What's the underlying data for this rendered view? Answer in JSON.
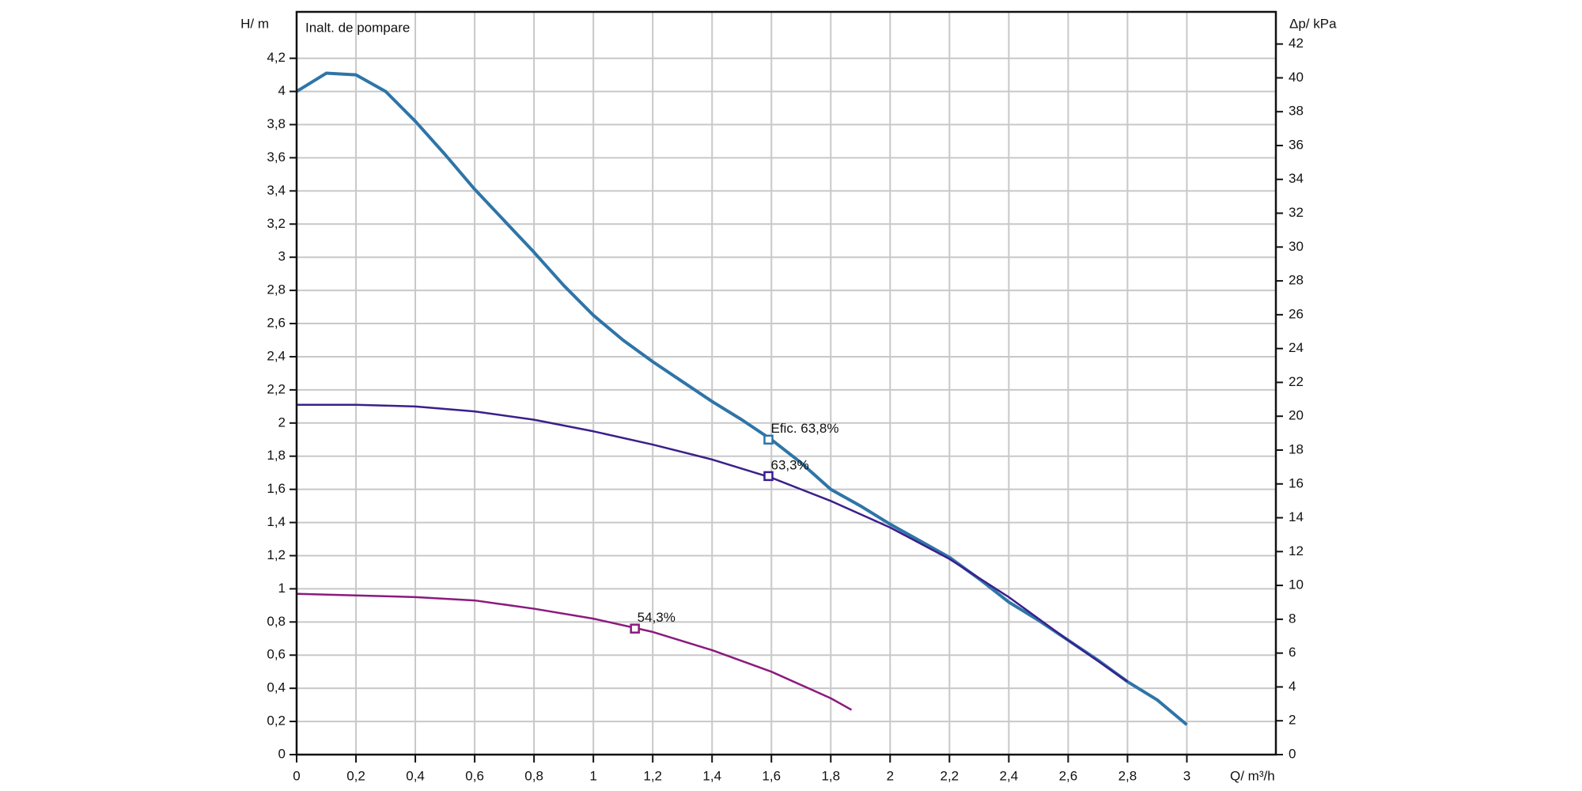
{
  "chart_data": {
    "type": "line",
    "title": "Inalt. de pompare",
    "xlabel": "Q/ m³/h",
    "ylabel": "H/ m",
    "y2label": "Δp/ kPa",
    "xlim": [
      0,
      3.3
    ],
    "ylim": [
      0,
      4.48
    ],
    "y2lim": [
      0,
      43.9
    ],
    "grid": true,
    "xticks": [
      0,
      {
        "value": 0.2,
        "label": "0,2"
      },
      {
        "value": 0.4,
        "label": "0,4"
      },
      {
        "value": 0.6,
        "label": "0,6"
      },
      {
        "value": 0.8,
        "label": "0,8"
      },
      1,
      {
        "value": 1.2,
        "label": "1,2"
      },
      {
        "value": 1.4,
        "label": "1,4"
      },
      {
        "value": 1.6,
        "label": "1,6"
      },
      {
        "value": 1.8,
        "label": "1,8"
      },
      2,
      {
        "value": 2.2,
        "label": "2,2"
      },
      {
        "value": 2.4,
        "label": "2,4"
      },
      {
        "value": 2.6,
        "label": "2,6"
      },
      {
        "value": 2.8,
        "label": "2,8"
      },
      3
    ],
    "yticks": [
      0,
      {
        "value": 0.2,
        "label": "0,2"
      },
      {
        "value": 0.4,
        "label": "0,4"
      },
      {
        "value": 0.6,
        "label": "0,6"
      },
      {
        "value": 0.8,
        "label": "0,8"
      },
      1,
      {
        "value": 1.2,
        "label": "1,2"
      },
      {
        "value": 1.4,
        "label": "1,4"
      },
      {
        "value": 1.6,
        "label": "1,6"
      },
      {
        "value": 1.8,
        "label": "1,8"
      },
      2,
      {
        "value": 2.2,
        "label": "2,2"
      },
      {
        "value": 2.4,
        "label": "2,4"
      },
      {
        "value": 2.6,
        "label": "2,6"
      },
      {
        "value": 2.8,
        "label": "2,8"
      },
      3,
      {
        "value": 3.2,
        "label": "3,2"
      },
      {
        "value": 3.4,
        "label": "3,4"
      },
      {
        "value": 3.6,
        "label": "3,6"
      },
      {
        "value": 3.8,
        "label": "3,8"
      },
      4,
      {
        "value": 4.2,
        "label": "4,2"
      }
    ],
    "y2ticks": [
      0,
      2,
      4,
      6,
      8,
      10,
      12,
      14,
      16,
      18,
      20,
      22,
      24,
      26,
      28,
      30,
      32,
      34,
      36,
      38,
      40,
      42
    ],
    "series": [
      {
        "color": "#2e75a8",
        "width": 4,
        "x": [
          0,
          0.1,
          0.2,
          0.3,
          0.4,
          0.5,
          0.6,
          0.7,
          0.8,
          0.9,
          1,
          1.1,
          1.2,
          1.3,
          1.4,
          1.5,
          1.6,
          1.7,
          1.8,
          1.9,
          2,
          2.1,
          2.2,
          2.3,
          2.4,
          2.5,
          2.6,
          2.7,
          2.8,
          2.9,
          3
        ],
        "values": [
          4.0,
          4.11,
          4.1,
          4.0,
          3.82,
          3.62,
          3.41,
          3.22,
          3.03,
          2.83,
          2.65,
          2.5,
          2.37,
          2.25,
          2.13,
          2.02,
          1.9,
          1.76,
          1.6,
          1.5,
          1.39,
          1.29,
          1.19,
          1.06,
          0.92,
          0.81,
          0.69,
          0.57,
          0.44,
          0.33,
          0.18
        ],
        "marker": {
          "x": 1.59,
          "y": 1.9,
          "label": "Efic. 63,8%"
        }
      },
      {
        "color": "#3a1f8c",
        "width": 2.5,
        "x": [
          0,
          0.2,
          0.4,
          0.6,
          0.8,
          1,
          1.2,
          1.4,
          1.6,
          1.8,
          2,
          2.2,
          2.4,
          2.6,
          2.8
        ],
        "values": [
          2.11,
          2.11,
          2.1,
          2.07,
          2.02,
          1.95,
          1.87,
          1.78,
          1.67,
          1.53,
          1.37,
          1.18,
          0.95,
          0.69,
          0.44
        ],
        "marker": {
          "x": 1.59,
          "y": 1.68,
          "label": "63,3%"
        }
      },
      {
        "color": "#8b1a7e",
        "width": 2.5,
        "x": [
          0,
          0.2,
          0.4,
          0.6,
          0.8,
          1,
          1.2,
          1.4,
          1.6,
          1.8,
          1.87
        ],
        "values": [
          0.97,
          0.96,
          0.95,
          0.93,
          0.88,
          0.82,
          0.74,
          0.63,
          0.5,
          0.34,
          0.27
        ],
        "marker": {
          "x": 1.14,
          "y": 0.76,
          "label": "54,3%"
        }
      }
    ]
  }
}
